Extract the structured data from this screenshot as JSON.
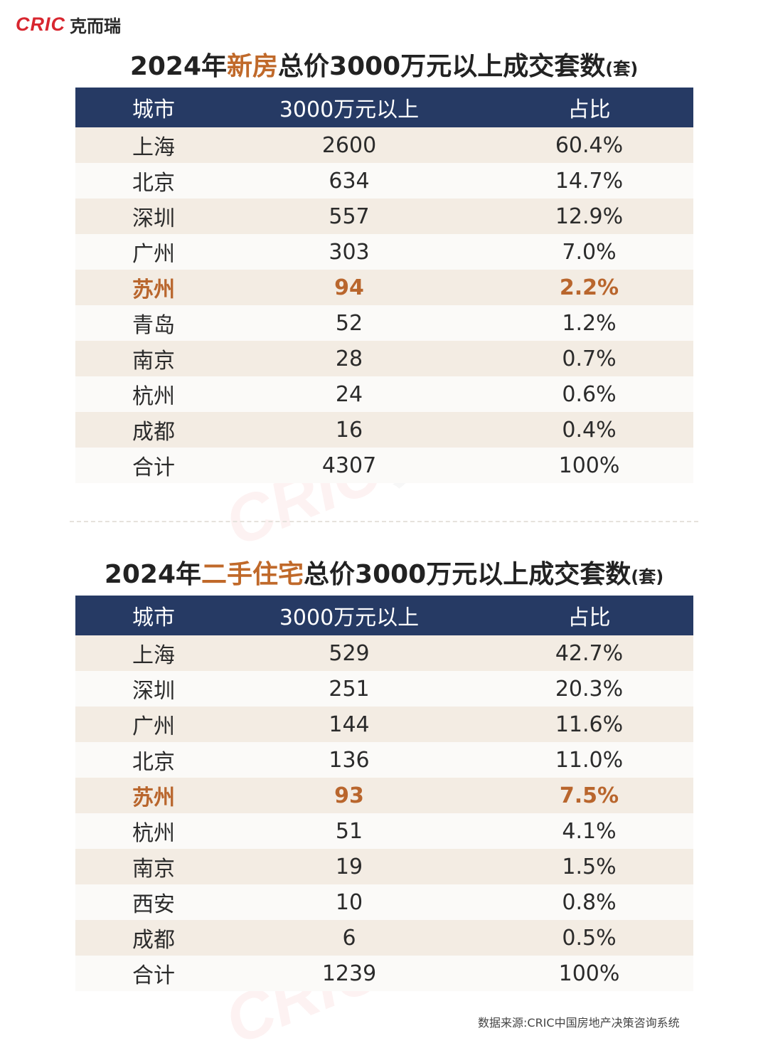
{
  "logo": {
    "mark": "CRIC",
    "name": "克而瑞"
  },
  "chart_data": [
    {
      "type": "table",
      "title": "2024年新房总价3000万元以上成交套数(套)",
      "title_parts": {
        "pre": "2024年",
        "highlight": "新房",
        "post": "总价3000万元以上成交套数",
        "unit": "(套)"
      },
      "columns": [
        "城市",
        "3000万元以上",
        "占比"
      ],
      "rows": [
        {
          "city": "上海",
          "count": "2600",
          "share": "60.4%",
          "highlight": false
        },
        {
          "city": "北京",
          "count": "634",
          "share": "14.7%",
          "highlight": false
        },
        {
          "city": "深圳",
          "count": "557",
          "share": "12.9%",
          "highlight": false
        },
        {
          "city": "广州",
          "count": "303",
          "share": "7.0%",
          "highlight": false
        },
        {
          "city": "苏州",
          "count": "94",
          "share": "2.2%",
          "highlight": true
        },
        {
          "city": "青岛",
          "count": "52",
          "share": "1.2%",
          "highlight": false
        },
        {
          "city": "南京",
          "count": "28",
          "share": "0.7%",
          "highlight": false
        },
        {
          "city": "杭州",
          "count": "24",
          "share": "0.6%",
          "highlight": false
        },
        {
          "city": "成都",
          "count": "16",
          "share": "0.4%",
          "highlight": false
        },
        {
          "city": "合计",
          "count": "4307",
          "share": "100%",
          "highlight": false
        }
      ]
    },
    {
      "type": "table",
      "title": "2024年二手住宅总价3000万元以上成交套数(套)",
      "title_parts": {
        "pre": "2024年",
        "highlight": "二手住宅",
        "post": "总价3000万元以上成交套数",
        "unit": "(套)"
      },
      "columns": [
        "城市",
        "3000万元以上",
        "占比"
      ],
      "rows": [
        {
          "city": "上海",
          "count": "529",
          "share": "42.7%",
          "highlight": false
        },
        {
          "city": "深圳",
          "count": "251",
          "share": "20.3%",
          "highlight": false
        },
        {
          "city": "广州",
          "count": "144",
          "share": "11.6%",
          "highlight": false
        },
        {
          "city": "北京",
          "count": "136",
          "share": "11.0%",
          "highlight": false
        },
        {
          "city": "苏州",
          "count": "93",
          "share": "7.5%",
          "highlight": true
        },
        {
          "city": "杭州",
          "count": "51",
          "share": "4.1%",
          "highlight": false
        },
        {
          "city": "南京",
          "count": "19",
          "share": "1.5%",
          "highlight": false
        },
        {
          "city": "西安",
          "count": "10",
          "share": "0.8%",
          "highlight": false
        },
        {
          "city": "成都",
          "count": "6",
          "share": "0.5%",
          "highlight": false
        },
        {
          "city": "合计",
          "count": "1239",
          "share": "100%",
          "highlight": false
        }
      ]
    }
  ],
  "colors": {
    "header_bg": "#263a64",
    "highlight_text": "#b9662d",
    "title_highlight": "#c0692a",
    "row_alt": "#f3ece3"
  },
  "source": "数据来源:CRIC中国房地产决策咨询系统"
}
